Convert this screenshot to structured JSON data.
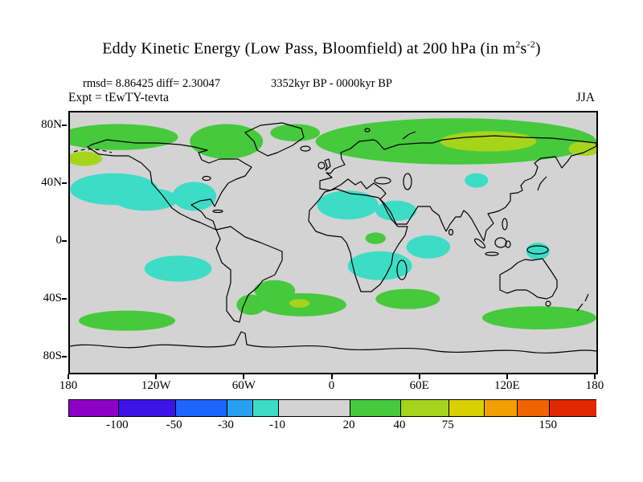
{
  "chart_data": {
    "type": "heatmap",
    "subtype": "filled-contour-anomaly-map",
    "title_parts": {
      "pre": "Eddy Kinetic Energy (Low Pass, Bloomfield) at 200 hPa (in m",
      "sup1": "2",
      "mid": "s",
      "sup2": "-2",
      "post": ")"
    },
    "title_plain": "Eddy Kinetic Energy (Low Pass, Bloomfield) at 200 hPa (in m2 s-2)",
    "header": {
      "stats": "rmsd= 8.86425 diff= 2.30047",
      "period": "3352kyr BP - 0000kyr BP",
      "experiment": "Expt = tEwTY-tevta",
      "season": "JJA"
    },
    "background_color": "#d3d3d3",
    "background_value_range": "-10..20",
    "x_axis": {
      "ticks": [
        {
          "label": "180",
          "pos": 0.0
        },
        {
          "label": "120W",
          "pos": 0.16667
        },
        {
          "label": "60W",
          "pos": 0.33333
        },
        {
          "label": "0",
          "pos": 0.5
        },
        {
          "label": "60E",
          "pos": 0.66667
        },
        {
          "label": "120E",
          "pos": 0.83333
        },
        {
          "label": "180",
          "pos": 1.0
        }
      ]
    },
    "y_axis": {
      "ticks": [
        {
          "label": "80N",
          "pos": 0.05556
        },
        {
          "label": "40N",
          "pos": 0.27778
        },
        {
          "label": "0",
          "pos": 0.5
        },
        {
          "label": "40S",
          "pos": 0.72222
        },
        {
          "label": "80S",
          "pos": 0.94444
        }
      ]
    },
    "level_colors": {
      "-30..-10": "#3ddcc6",
      "20..40": "#46c93c",
      "40..75": "#a6d41c"
    },
    "anomalies": [
      {
        "lon": -147,
        "lat": 73,
        "rlon": 41,
        "rlat": 9,
        "range": "20..40"
      },
      {
        "lon": -73,
        "lat": 70,
        "rlon": 25,
        "rlat": 12,
        "range": "20..40"
      },
      {
        "lon": -26,
        "lat": 76,
        "rlon": 17,
        "rlat": 6,
        "range": "20..40"
      },
      {
        "lon": 32,
        "lat": 73,
        "rlon": 30,
        "rlat": 7,
        "range": "20..40"
      },
      {
        "lon": 84,
        "lat": 70,
        "rlon": 96,
        "rlat": 16,
        "range": "20..40"
      },
      {
        "lon": 106,
        "lat": 70,
        "rlon": 33,
        "rlat": 7,
        "range": "40..75"
      },
      {
        "lon": 172,
        "lat": 65,
        "rlon": 11,
        "rlat": 5,
        "range": "40..75"
      },
      {
        "lon": -170,
        "lat": 58,
        "rlon": 12,
        "rlat": 5,
        "range": "40..75"
      },
      {
        "lon": -150,
        "lat": 37,
        "rlon": 30,
        "rlat": 11,
        "range": "-30..-10"
      },
      {
        "lon": -128,
        "lat": 30,
        "rlon": 22,
        "rlat": 8,
        "range": "-30..-10"
      },
      {
        "lon": -95,
        "lat": 32,
        "rlon": 15,
        "rlat": 10,
        "range": "-30..-10"
      },
      {
        "lon": 10,
        "lat": 26,
        "rlon": 21,
        "rlat": 10,
        "range": "-30..-10"
      },
      {
        "lon": 43,
        "lat": 22,
        "rlon": 14,
        "rlat": 7,
        "range": "-30..-10"
      },
      {
        "lon": 98,
        "lat": 43,
        "rlon": 8,
        "rlat": 5,
        "range": "-30..-10"
      },
      {
        "lon": 65,
        "lat": -3,
        "rlon": 15,
        "rlat": 8,
        "range": "-30..-10"
      },
      {
        "lon": 29,
        "lat": 3,
        "rlon": 7,
        "rlat": 4,
        "range": "20..40"
      },
      {
        "lon": 32,
        "lat": -16,
        "rlon": 22,
        "rlat": 10,
        "range": "-30..-10"
      },
      {
        "lon": -106,
        "lat": -18,
        "rlon": 23,
        "rlat": 9,
        "range": "-30..-10"
      },
      {
        "lon": 140,
        "lat": -6,
        "rlon": 8,
        "rlat": 6,
        "range": "-30..-10"
      },
      {
        "lon": -40,
        "lat": -33,
        "rlon": 14,
        "rlat": 7,
        "range": "20..40"
      },
      {
        "lon": -21,
        "lat": -43,
        "rlon": 30,
        "rlat": 8,
        "range": "20..40"
      },
      {
        "lon": -23,
        "lat": -42,
        "rlon": 7,
        "rlat": 3,
        "range": "40..75"
      },
      {
        "lon": -56,
        "lat": -43,
        "rlon": 10,
        "rlat": 7,
        "range": "20..40"
      },
      {
        "lon": 51,
        "lat": -39,
        "rlon": 22,
        "rlat": 7,
        "range": "20..40"
      },
      {
        "lon": 141,
        "lat": -52,
        "rlon": 39,
        "rlat": 8,
        "range": "20..40"
      },
      {
        "lon": -141,
        "lat": -54,
        "rlon": 33,
        "rlat": 7,
        "range": "20..40"
      }
    ],
    "colorbar": {
      "segments": [
        {
          "color": "#8c00c8",
          "start": 0.0,
          "end": 0.093
        },
        {
          "color": "#3c14e6",
          "start": 0.093,
          "end": 0.201
        },
        {
          "color": "#1e64ff",
          "start": 0.201,
          "end": 0.299
        },
        {
          "color": "#28a0f0",
          "start": 0.299,
          "end": 0.348
        },
        {
          "color": "#3ddcc6",
          "start": 0.348,
          "end": 0.397
        },
        {
          "color": "#d3d3d3",
          "start": 0.397,
          "end": 0.533
        },
        {
          "color": "#46c93c",
          "start": 0.533,
          "end": 0.629
        },
        {
          "color": "#a6d41c",
          "start": 0.629,
          "end": 0.721
        },
        {
          "color": "#d8d000",
          "start": 0.721,
          "end": 0.788
        },
        {
          "color": "#f0a000",
          "start": 0.788,
          "end": 0.85
        },
        {
          "color": "#f06400",
          "start": 0.85,
          "end": 0.911
        },
        {
          "color": "#e12800",
          "start": 0.911,
          "end": 1.0
        }
      ],
      "labels": [
        {
          "value": "-100",
          "pos": 0.093
        },
        {
          "value": "-50",
          "pos": 0.201
        },
        {
          "value": "-30",
          "pos": 0.299
        },
        {
          "value": "-10",
          "pos": 0.397
        },
        {
          "value": "20",
          "pos": 0.533
        },
        {
          "value": "40",
          "pos": 0.629
        },
        {
          "value": "75",
          "pos": 0.721
        },
        {
          "value": "150",
          "pos": 0.911
        }
      ]
    }
  }
}
